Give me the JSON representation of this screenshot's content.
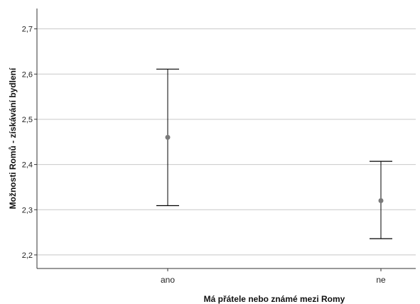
{
  "chart_data": {
    "type": "errorbar",
    "categories": [
      "ano",
      "ne"
    ],
    "means": [
      2.46,
      2.32
    ],
    "lower": [
      2.309,
      2.236
    ],
    "upper": [
      2.611,
      2.407
    ],
    "ylim": [
      2.17,
      2.745
    ],
    "yticks": [
      2.2,
      2.3,
      2.4,
      2.5,
      2.6,
      2.7
    ],
    "ytick_labels": [
      "2,2",
      "2,3",
      "2,4",
      "2,5",
      "2,6",
      "2,7"
    ],
    "xlabel": "Má přátele nebo známé mezi Romy",
    "ylabel": "Možnosti Romů - získávání bydlení",
    "grid": "horizontal",
    "colors": {
      "gridline": "#c8c8c8",
      "axis": "#333333",
      "errorbar": "#000000",
      "point": "#7a7a7a"
    }
  }
}
